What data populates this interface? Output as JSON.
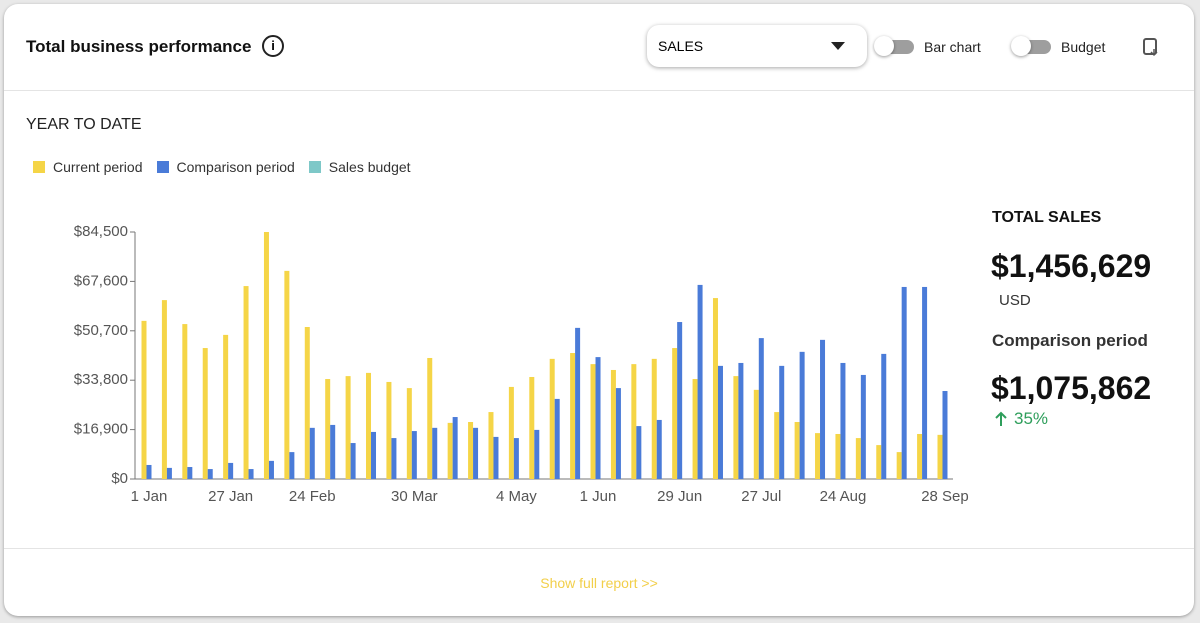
{
  "header": {
    "title": "Total business performance",
    "dropdown": "SALES",
    "toggles": [
      "Bar chart",
      "Budget"
    ]
  },
  "section_label": "YEAR TO DATE",
  "chart_data": {
    "type": "bar",
    "categories": [
      "1 Jan",
      null,
      null,
      null,
      "27 Jan",
      null,
      null,
      null,
      "24 Feb",
      null,
      null,
      null,
      null,
      "30 Mar",
      null,
      null,
      null,
      null,
      "4 May",
      null,
      null,
      null,
      "1 Jun",
      null,
      null,
      null,
      "29 Jun",
      null,
      null,
      null,
      "27 Jul",
      null,
      null,
      null,
      "24 Aug",
      null,
      null,
      null,
      null,
      "28 Sep"
    ],
    "series": [
      {
        "name": "Current period",
        "color": "#f5d547",
        "values": [
          54100,
          61200,
          53000,
          44800,
          49300,
          66000,
          84500,
          71200,
          52000,
          34200,
          35200,
          36300,
          33200,
          31100,
          41400,
          19200,
          19500,
          22900,
          31500,
          34900,
          41100,
          43100,
          39300,
          37300,
          39300,
          41100,
          44800,
          34200,
          61900,
          35200,
          30500,
          22900,
          19500,
          15700,
          15400,
          14000,
          11600,
          9200,
          15400,
          15100
        ]
      },
      {
        "name": "Comparison period",
        "color": "#4a7bd8",
        "values": [
          4800,
          3800,
          4100,
          3400,
          5500,
          3400,
          6200,
          9200,
          17500,
          18500,
          12300,
          16100,
          14000,
          16400,
          17500,
          21200,
          17500,
          14400,
          14000,
          16800,
          27400,
          51700,
          41700,
          31100,
          18100,
          20200,
          53700,
          66400,
          38700,
          39700,
          48200,
          38700,
          43500,
          47600,
          39700,
          35600,
          42800,
          65700,
          65700,
          30100
        ]
      },
      {
        "name": "Sales budget",
        "color": "#7ec8c8",
        "values": [
          null,
          null,
          null,
          null,
          null,
          null,
          null,
          null,
          null,
          null,
          null,
          null,
          null,
          null,
          null,
          null,
          null,
          null,
          null,
          null,
          null,
          null,
          null,
          null,
          null,
          null,
          null,
          null,
          null,
          null,
          null,
          null,
          null,
          null,
          null,
          null,
          null,
          null,
          null,
          null
        ]
      }
    ],
    "ylim": [
      0,
      84500
    ],
    "yticks": [
      {
        "value": 0,
        "label": "$0"
      },
      {
        "value": 16900,
        "label": "$16,900"
      },
      {
        "value": 33800,
        "label": "$33,800"
      },
      {
        "value": 50700,
        "label": "$50,700"
      },
      {
        "value": 67600,
        "label": "$67,600"
      },
      {
        "value": 84500,
        "label": "$84,500"
      }
    ],
    "grid": false
  },
  "summary": {
    "title": "TOTAL SALES",
    "total": "$1,456,629",
    "currency": "USD",
    "comparison_label": "Comparison period",
    "comparison_total": "$1,075,862",
    "change": "35%"
  },
  "footer": {
    "link": "Show full report >>"
  }
}
